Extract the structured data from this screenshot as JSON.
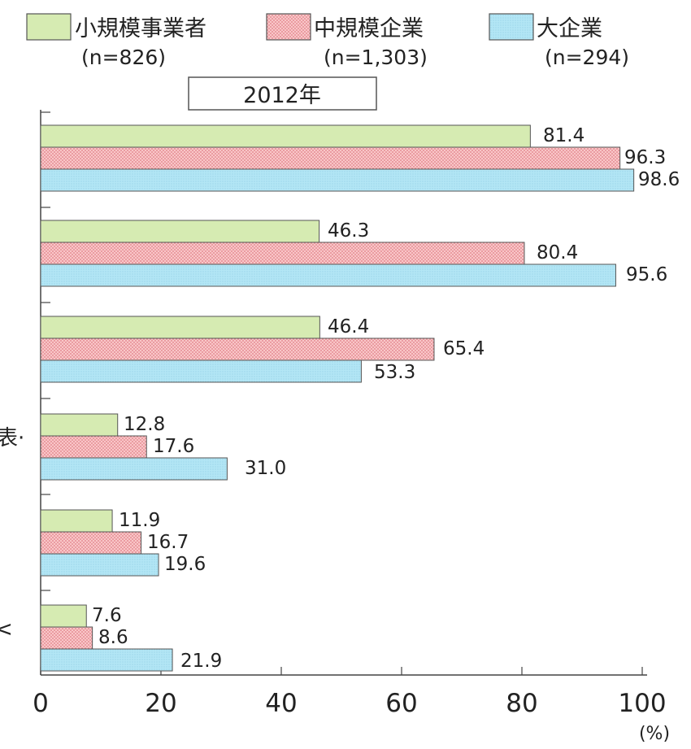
{
  "chart_data": {
    "type": "bar",
    "orientation": "horizontal",
    "title": "2012年",
    "unit_label": "(%)",
    "xlim": [
      0,
      100
    ],
    "x_ticks": [
      0,
      20,
      40,
      60,
      80,
      100
    ],
    "categories": [
      "",
      "",
      "",
      "",
      "",
      ""
    ],
    "category_label_fragments": [
      "",
      "",
      "",
      "表·",
      "",
      "<"
    ],
    "grid": false,
    "legend_position": "top",
    "series": [
      {
        "name": "小規模事業者",
        "sample": "(n=826)",
        "color": "#d6ebb2",
        "pattern": "solid",
        "values": [
          81.4,
          46.3,
          46.4,
          12.8,
          11.9,
          7.6
        ]
      },
      {
        "name": "中規模企業",
        "sample": "(n=1,303)",
        "color": "#f7b8bc",
        "pattern": "dotted",
        "values": [
          96.3,
          80.4,
          65.4,
          17.6,
          16.7,
          8.6
        ]
      },
      {
        "name": "大企業",
        "sample": "(n=294)",
        "color": "#a9e2f3",
        "pattern": "fine-dotted",
        "values": [
          98.6,
          95.6,
          53.3,
          31.0,
          19.6,
          21.9
        ]
      }
    ]
  }
}
